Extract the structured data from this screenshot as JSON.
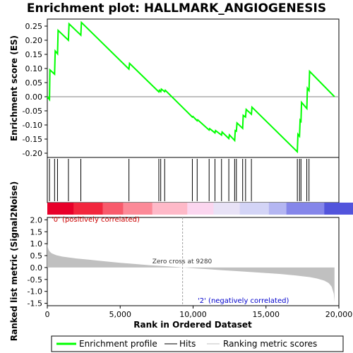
{
  "chart_data": {
    "type": "line",
    "title": "Enrichment plot: HALLMARK_ANGIOGENESIS",
    "colors": {
      "profile": "#00ff00",
      "hits": "#000000",
      "metric_fill": "#c0c0c0",
      "zero_line": "#808080",
      "positive_text": "#cc0000",
      "negative_text": "#0000cc"
    },
    "x_axis": {
      "label": "Rank in Ordered Dataset",
      "range": [
        0,
        20000
      ],
      "ticks": [
        0,
        5000,
        10000,
        15000,
        20000
      ],
      "tick_labels": [
        "0",
        "5,000",
        "10,000",
        "15,000",
        "20,000"
      ]
    },
    "es_panel": {
      "ylabel": "Enrichment score (ES)",
      "ylim": [
        -0.215,
        0.275
      ],
      "ticks": [
        0.25,
        0.2,
        0.15,
        0.1,
        0.05,
        0.0,
        -0.05,
        -0.1,
        -0.15,
        -0.2
      ],
      "tick_labels": [
        "0.25",
        "0.20",
        "0.15",
        "0.10",
        "0.05",
        "0.00",
        "-0.05",
        "-0.10",
        "-0.15",
        "-0.20"
      ],
      "series": [
        {
          "name": "Enrichment profile",
          "x": [
            0,
            150,
            180,
            500,
            540,
            700,
            740,
            1450,
            1490,
            2300,
            2340,
            5600,
            5640,
            7650,
            7690,
            7780,
            7820,
            8050,
            8090,
            9950,
            9990,
            10280,
            10320,
            11100,
            11140,
            11500,
            11540,
            11950,
            11990,
            12450,
            12490,
            12850,
            12890,
            12970,
            13010,
            13400,
            13440,
            13600,
            13640,
            14000,
            14040,
            17150,
            17190,
            17300,
            17340,
            17400,
            17440,
            17800,
            17840,
            17950,
            17990,
            19700
          ],
          "values": [
            0.0,
            -0.01,
            0.095,
            0.08,
            0.162,
            0.152,
            0.235,
            0.2,
            0.258,
            0.218,
            0.263,
            0.098,
            0.118,
            0.017,
            0.023,
            0.018,
            0.027,
            0.018,
            0.023,
            -0.072,
            -0.07,
            -0.085,
            -0.082,
            -0.118,
            -0.113,
            -0.128,
            -0.12,
            -0.136,
            -0.125,
            -0.148,
            -0.135,
            -0.155,
            -0.12,
            -0.122,
            -0.093,
            -0.112,
            -0.066,
            -0.072,
            -0.045,
            -0.062,
            -0.037,
            -0.195,
            -0.133,
            -0.14,
            -0.083,
            -0.087,
            -0.02,
            -0.042,
            0.03,
            0.022,
            0.09,
            0.0
          ]
        }
      ]
    },
    "hits": [
      150,
      500,
      700,
      1450,
      2300,
      5600,
      7650,
      7780,
      8050,
      9950,
      10280,
      11100,
      11500,
      11950,
      12450,
      12850,
      12970,
      13400,
      13600,
      14000,
      17150,
      17300,
      17400,
      17800,
      17950
    ],
    "heat_bar": {
      "colors": [
        "#e8002a",
        "#f2263e",
        "#f85b6c",
        "#fc8a98",
        "#feb9c8",
        "#fbd6ef",
        "#e8e2f6",
        "#d3d4f6",
        "#b4b6f2",
        "#8586ea",
        "#5254dc",
        "#2521c8"
      ],
      "fractions": [
        0.09,
        0.1,
        0.07,
        0.1,
        0.12,
        0.09,
        0.09,
        0.1,
        0.06,
        0.13,
        0.1,
        0.05
      ]
    },
    "metric_panel": {
      "ylabel": "Ranked list metric (Signal2Noise)",
      "ylim": [
        -1.6,
        2.1
      ],
      "ticks": [
        2.0,
        1.5,
        1.0,
        0.5,
        0.0,
        -0.5,
        -1.0,
        -1.5
      ],
      "tick_labels": [
        "2.0",
        "1.5",
        "1.0",
        "0.5",
        "0.0",
        "-0.5",
        "-1.0",
        "-1.5"
      ],
      "series": [
        {
          "x": [
            0,
            15,
            40,
            80,
            150,
            300,
            600,
            1000,
            2000,
            3000,
            4000,
            5000,
            6000,
            7000,
            8000,
            9000,
            9280,
            10000,
            11000,
            12000,
            13000,
            14000,
            15000,
            16000,
            17000,
            18000,
            18500,
            19000,
            19300,
            19500,
            19650,
            19700
          ],
          "values": [
            1.0,
            0.95,
            0.85,
            0.76,
            0.68,
            0.6,
            0.52,
            0.46,
            0.38,
            0.32,
            0.26,
            0.2,
            0.15,
            0.1,
            0.06,
            0.02,
            0.0,
            -0.03,
            -0.07,
            -0.11,
            -0.15,
            -0.19,
            -0.23,
            -0.27,
            -0.33,
            -0.4,
            -0.46,
            -0.55,
            -0.65,
            -0.8,
            -1.1,
            -1.45
          ]
        }
      ],
      "zero_cross_label": "Zero cross at 9280",
      "zero_cross": 9280,
      "positive_label": "'0' (positively correlated)",
      "negative_label": "'2' (negatively correlated)"
    },
    "legend": {
      "placement": "bottom",
      "items": [
        {
          "label": "Enrichment profile",
          "color": "#00ff00"
        },
        {
          "label": "Hits",
          "color": "#000000"
        },
        {
          "label": "Ranking metric scores",
          "color": "#c0c0c0"
        }
      ]
    }
  }
}
